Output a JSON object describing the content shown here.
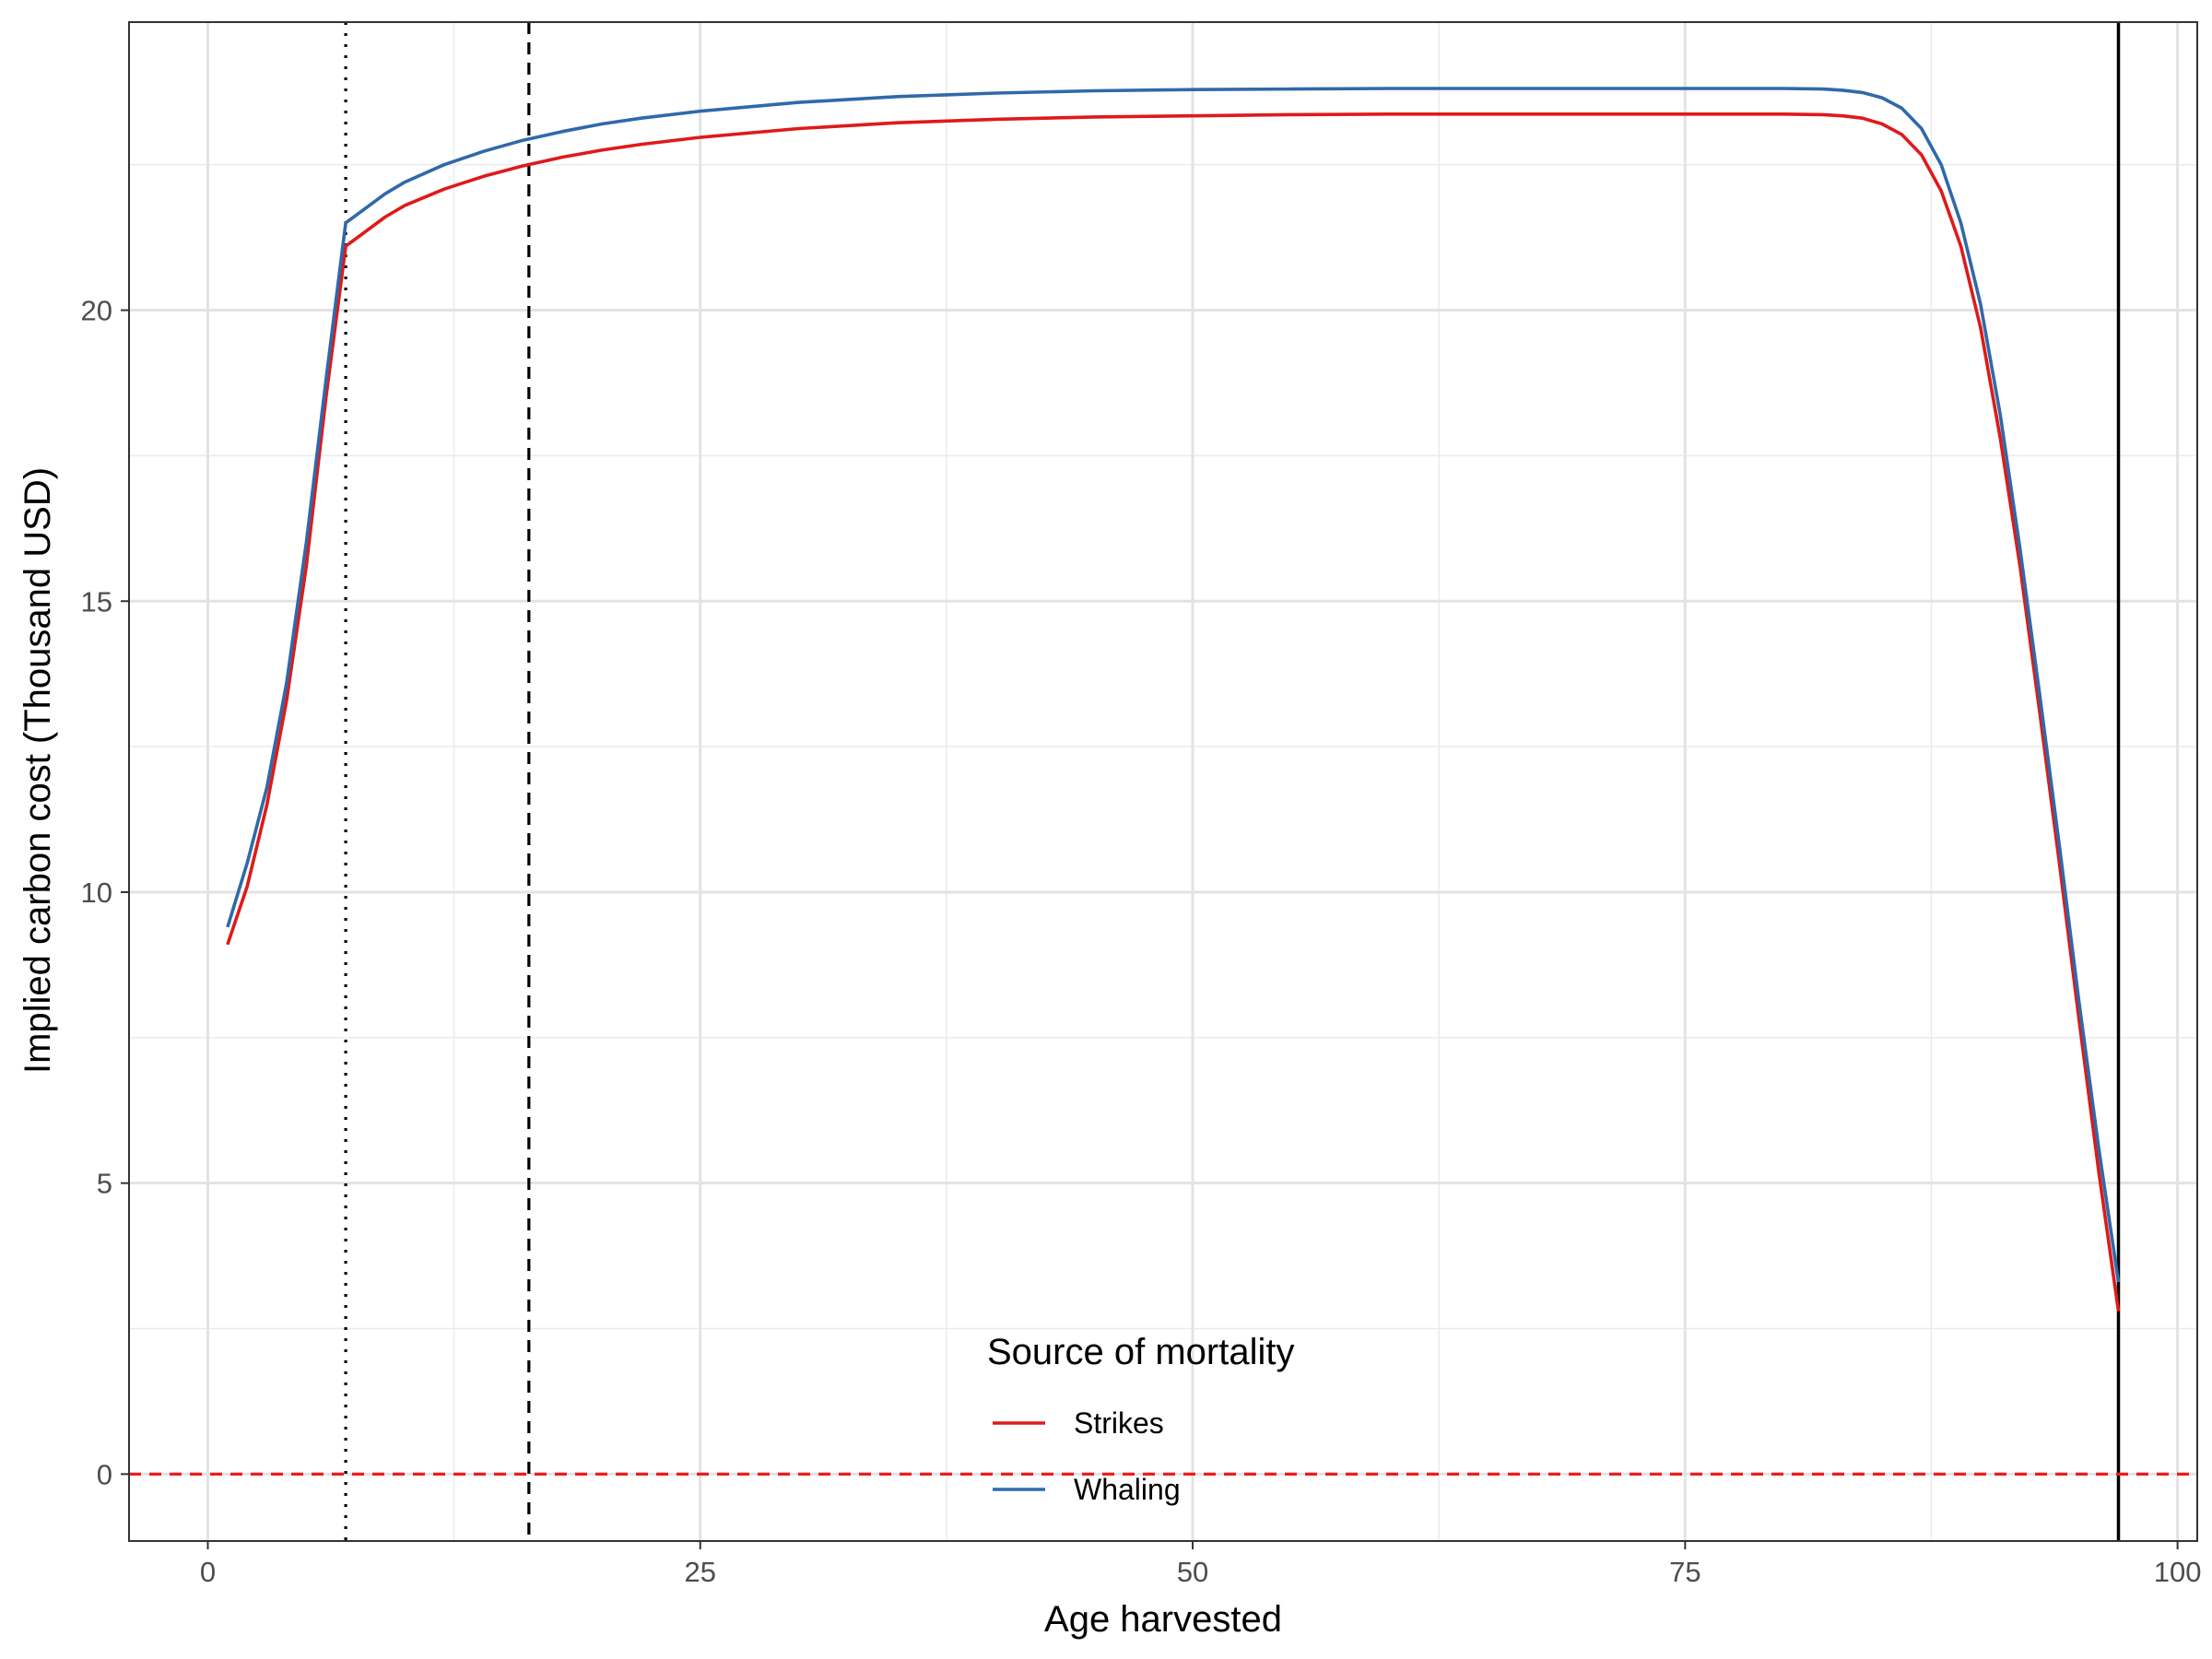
{
  "chart_data": {
    "type": "line",
    "xlabel": "Age harvested",
    "ylabel": "Implied carbon cost (Thousand USD)",
    "xlim": [
      -4,
      101
    ],
    "ylim": [
      -1.15,
      24.95
    ],
    "x_ticks": [
      0,
      25,
      50,
      75,
      100
    ],
    "x_tick_labels": [
      "0",
      "25",
      "50",
      "75",
      "100"
    ],
    "y_ticks": [
      0,
      5,
      10,
      15,
      20
    ],
    "y_tick_labels": [
      "0",
      "5",
      "10",
      "15",
      "20"
    ],
    "x_minor_ticks": [
      12.5,
      37.5,
      62.5,
      87.5
    ],
    "y_minor_ticks": [
      2.5,
      7.5,
      12.5,
      17.5,
      22.5
    ],
    "grid": true,
    "legend": {
      "title": "Source of mortality",
      "position": "bottom-center-inside",
      "entries": [
        "Strikes",
        "Whaling"
      ]
    },
    "reference_lines": [
      {
        "orientation": "vertical",
        "x": 7,
        "style": "dotted",
        "color": "#000000"
      },
      {
        "orientation": "vertical",
        "x": 16.3,
        "style": "dashed",
        "color": "#000000"
      },
      {
        "orientation": "vertical",
        "x": 97,
        "style": "solid",
        "color": "#000000"
      },
      {
        "orientation": "horizontal",
        "y": 0,
        "style": "dashed",
        "color": "#ee1c1c"
      }
    ],
    "series": [
      {
        "name": "Strikes",
        "color": "#de1a1a",
        "points": [
          [
            1,
            9.1
          ],
          [
            2,
            10.1
          ],
          [
            3,
            11.5
          ],
          [
            4,
            13.3
          ],
          [
            5,
            15.6
          ],
          [
            6,
            18.5
          ],
          [
            7,
            21.1
          ],
          [
            8,
            21.35
          ],
          [
            9,
            21.6
          ],
          [
            10,
            21.8
          ],
          [
            12,
            22.08
          ],
          [
            14,
            22.3
          ],
          [
            16,
            22.48
          ],
          [
            18,
            22.63
          ],
          [
            20,
            22.75
          ],
          [
            22,
            22.85
          ],
          [
            25,
            22.97
          ],
          [
            30,
            23.12
          ],
          [
            35,
            23.22
          ],
          [
            40,
            23.28
          ],
          [
            45,
            23.32
          ],
          [
            50,
            23.34
          ],
          [
            55,
            23.36
          ],
          [
            60,
            23.37
          ],
          [
            65,
            23.37
          ],
          [
            70,
            23.37
          ],
          [
            75,
            23.37
          ],
          [
            80,
            23.37
          ],
          [
            82,
            23.36
          ],
          [
            83,
            23.34
          ],
          [
            84,
            23.3
          ],
          [
            85,
            23.2
          ],
          [
            86,
            23.02
          ],
          [
            87,
            22.67
          ],
          [
            88,
            22.05
          ],
          [
            89,
            21.1
          ],
          [
            90,
            19.7
          ],
          [
            91,
            17.8
          ],
          [
            92,
            15.6
          ],
          [
            93,
            13.1
          ],
          [
            94,
            10.5
          ],
          [
            95,
            7.8
          ],
          [
            96,
            5.2
          ],
          [
            97,
            2.8
          ]
        ]
      },
      {
        "name": "Whaling",
        "color": "#2f69aa",
        "points": [
          [
            1,
            9.4
          ],
          [
            2,
            10.5
          ],
          [
            3,
            11.8
          ],
          [
            4,
            13.6
          ],
          [
            5,
            16.0
          ],
          [
            6,
            18.8
          ],
          [
            7,
            21.5
          ],
          [
            8,
            21.75
          ],
          [
            9,
            22.0
          ],
          [
            10,
            22.2
          ],
          [
            12,
            22.5
          ],
          [
            14,
            22.73
          ],
          [
            16,
            22.92
          ],
          [
            18,
            23.07
          ],
          [
            20,
            23.2
          ],
          [
            22,
            23.3
          ],
          [
            25,
            23.42
          ],
          [
            30,
            23.57
          ],
          [
            35,
            23.67
          ],
          [
            40,
            23.73
          ],
          [
            45,
            23.77
          ],
          [
            50,
            23.79
          ],
          [
            55,
            23.8
          ],
          [
            60,
            23.81
          ],
          [
            65,
            23.81
          ],
          [
            70,
            23.81
          ],
          [
            75,
            23.81
          ],
          [
            80,
            23.81
          ],
          [
            82,
            23.8
          ],
          [
            83,
            23.78
          ],
          [
            84,
            23.74
          ],
          [
            85,
            23.65
          ],
          [
            86,
            23.47
          ],
          [
            87,
            23.12
          ],
          [
            88,
            22.5
          ],
          [
            89,
            21.5
          ],
          [
            90,
            20.1
          ],
          [
            91,
            18.2
          ],
          [
            92,
            15.9
          ],
          [
            93,
            13.4
          ],
          [
            94,
            10.8
          ],
          [
            95,
            8.1
          ],
          [
            96,
            5.6
          ],
          [
            97,
            3.3
          ]
        ]
      }
    ]
  }
}
